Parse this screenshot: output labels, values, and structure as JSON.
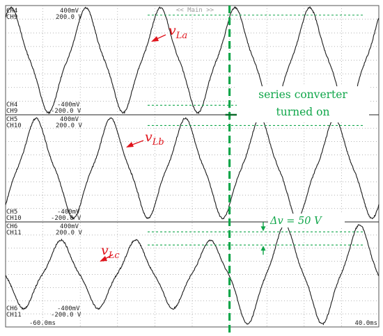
{
  "chart_data": {
    "type": "line",
    "header_label": "<< Main >>",
    "x_range_labels": {
      "start": "-60.0ms",
      "end": "40.0ms"
    },
    "xlim": [
      -60,
      40
    ],
    "x_unit": "ms",
    "frequency_hz": 50,
    "event": {
      "time_ms": 0,
      "label_line1": "series converter",
      "label_line2": "turned on"
    },
    "delta_annotation": "Δv = 50 V",
    "colors": {
      "trace": "#1a1a1a",
      "annotation": "#10a64a",
      "signal_label": "#e0141c",
      "grid": "#9a9a9a"
    },
    "panels": [
      {
        "signal_base": "v",
        "signal_sub": "La",
        "ch_top_a": "CH4",
        "ch_top_a_scale": "400mV",
        "ch_top_b": "CH9",
        "ch_top_b_scale": "200.0 V",
        "ch_bot_a": "CH4",
        "ch_bot_a_scale": "-400mV",
        "ch_bot_b": "CH9",
        "ch_bot_b_scale": "-200.0 V",
        "ylim": [
          -200,
          200
        ],
        "amplitude_before": 165,
        "amplitude_after": 165,
        "phase_deg": 63
      },
      {
        "signal_base": "v",
        "signal_sub": "Lb",
        "ch_top_a": "CH5",
        "ch_top_a_scale": "400mV",
        "ch_top_b": "CH10",
        "ch_top_b_scale": "200.0 V",
        "ch_bot_a": "CH5",
        "ch_bot_a_scale": "-400mV",
        "ch_bot_b": "CH10",
        "ch_bot_b_scale": "-200.0 V",
        "ylim": [
          -200,
          200
        ],
        "amplitude_before": 160,
        "amplitude_after": 160,
        "phase_deg": -57
      },
      {
        "signal_base": "v",
        "signal_sub": "Lc",
        "ch_top_a": "CH6",
        "ch_top_a_scale": "400mV",
        "ch_top_b": "CH11",
        "ch_top_b_scale": "200.0 V",
        "ch_bot_a": "CH6",
        "ch_bot_a_scale": "-400mV",
        "ch_bot_b": "CH11",
        "ch_bot_b_scale": "-200.0 V",
        "ylim": [
          -200,
          200
        ],
        "amplitude_before": 112,
        "amplitude_after": 162,
        "phase_deg": -177
      }
    ]
  }
}
